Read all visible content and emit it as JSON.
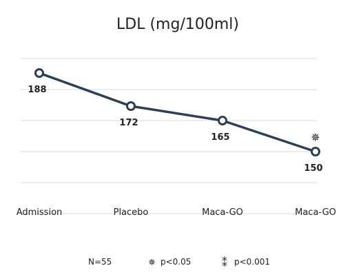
{
  "chart_data": {
    "type": "line",
    "title": "LDL (mg/100ml)",
    "categories": [
      "Admission",
      "Placebo",
      "Maca-GO",
      "Maca-GO"
    ],
    "series": [
      {
        "values": [
          188,
          172,
          165,
          150
        ],
        "labels": [
          "188",
          "172",
          "165",
          "150"
        ],
        "color": "#2b3f55"
      }
    ],
    "ylim": [
      120,
      200
    ],
    "gridlines": [
      120,
      135,
      150,
      165,
      180,
      195
    ],
    "grid": true,
    "legend": "none",
    "annotations": [
      {
        "category_index": 3,
        "symbol": "✵",
        "meaning": "p<0.05"
      }
    ]
  },
  "footer": {
    "n_label": "N=55",
    "sig1_symbol": "✵",
    "sig1_label": "p<0.05",
    "sig2_symbol": "⁑",
    "sig2_label": "p<0.001"
  }
}
